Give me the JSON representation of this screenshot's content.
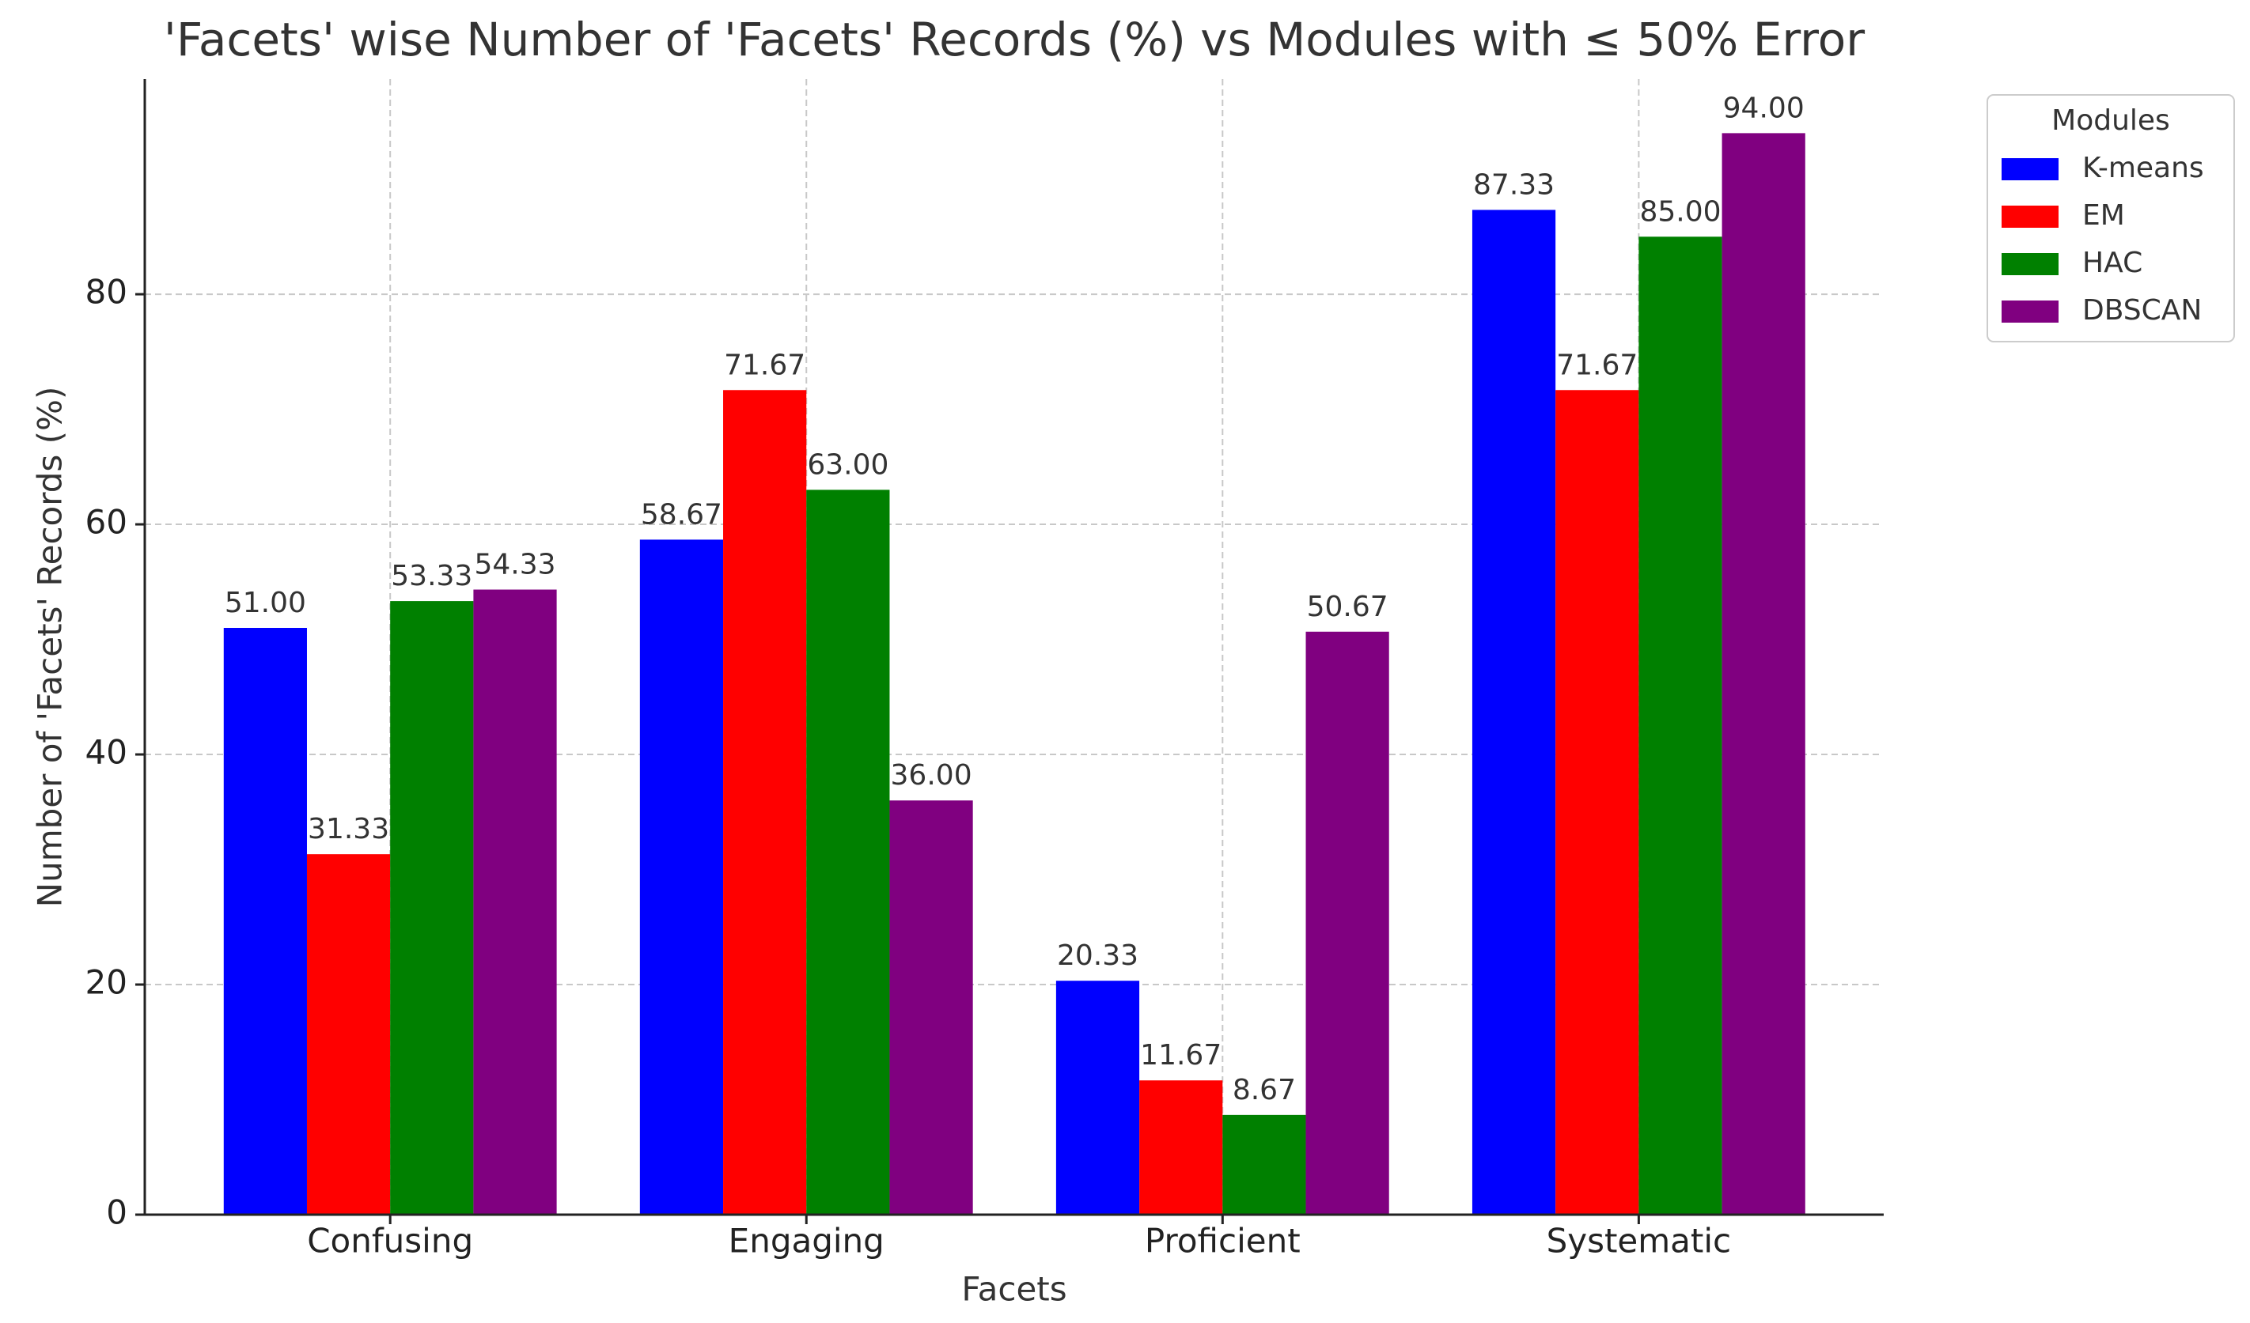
{
  "chart_data": {
    "type": "bar",
    "title": "'Facets' wise Number of 'Facets' Records (%) vs Modules with ≤ 50% Error",
    "x_label": "Facets",
    "y_label": "Number of 'Facets' Records (%)",
    "categories": [
      "Confusing",
      "Engaging",
      "Proficient",
      "Systematic"
    ],
    "series": [
      {
        "name": "K-means",
        "color": "#0000ff",
        "values": [
          51.0,
          58.67,
          20.33,
          87.33
        ],
        "value_labels": [
          "51.00",
          "58.67",
          "20.33",
          "87.33"
        ]
      },
      {
        "name": "EM",
        "color": "#ff0000",
        "values": [
          31.33,
          71.67,
          11.67,
          71.67
        ],
        "value_labels": [
          "31.33",
          "71.67",
          "11.67",
          "71.67"
        ]
      },
      {
        "name": "HAC",
        "color": "#008000",
        "values": [
          53.33,
          63.0,
          8.67,
          85.0
        ],
        "value_labels": [
          "53.33",
          "63.00",
          "8.67",
          "85.00"
        ]
      },
      {
        "name": "DBSCAN",
        "color": "#800080",
        "values": [
          54.33,
          36.0,
          50.67,
          94.0
        ],
        "value_labels": [
          "54.33",
          "36.00",
          "50.67",
          "94.00"
        ]
      }
    ],
    "legend_title": "Modules",
    "legend": "outside upper right",
    "ylim": [
      0,
      98.7
    ],
    "yticks": [
      0,
      20,
      40,
      60,
      80
    ],
    "grid": true
  }
}
